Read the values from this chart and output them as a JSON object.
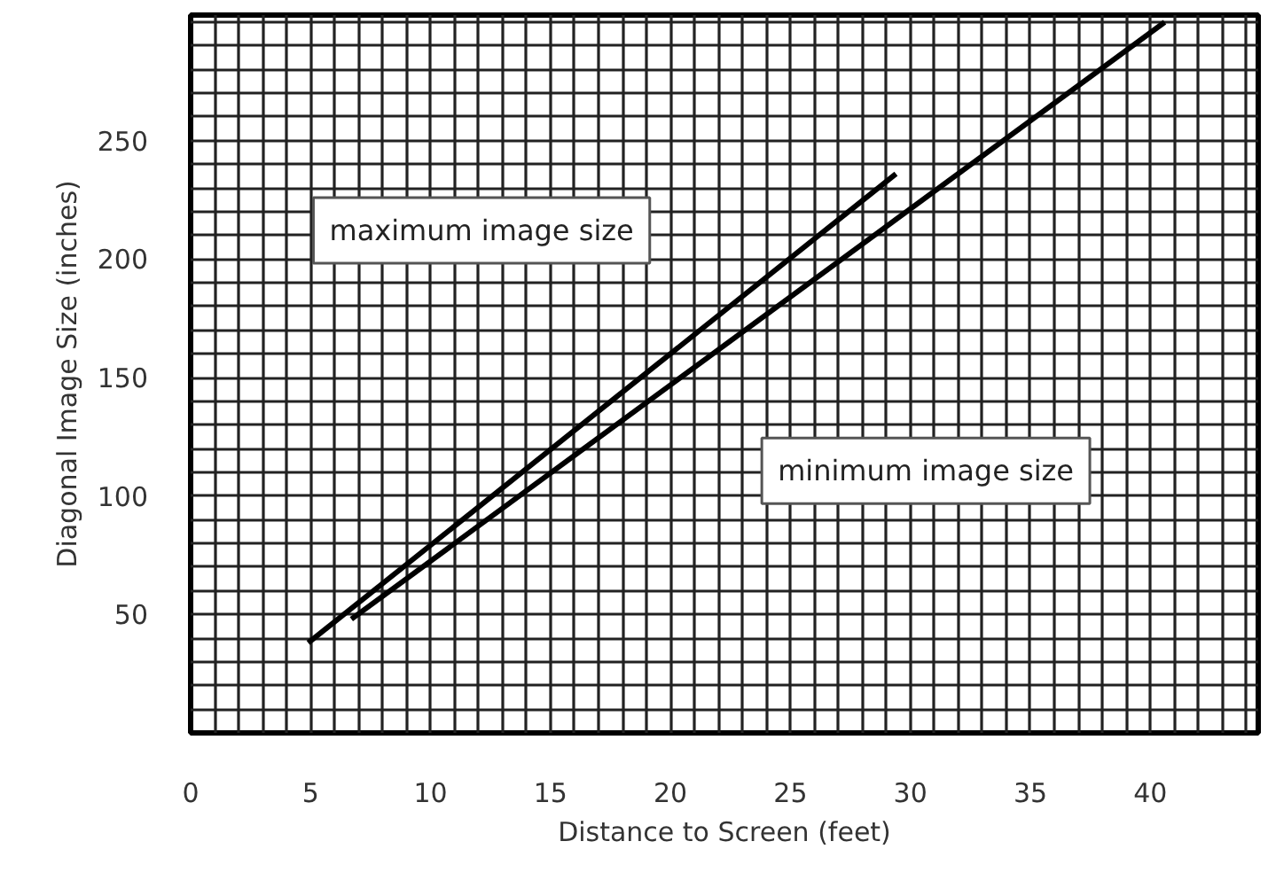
{
  "chart_data": {
    "type": "line",
    "xlabel": "Distance to Screen (feet)",
    "ylabel": "Diagonal Image Size (inches)",
    "xlim": [
      0,
      44.5
    ],
    "ylim": [
      0,
      303
    ],
    "xticks": [
      0,
      5,
      10,
      15,
      20,
      25,
      30,
      35,
      40
    ],
    "yticks": [
      50,
      100,
      150,
      200,
      250
    ],
    "grid": true,
    "marker": "none",
    "line_style": "solid",
    "series": [
      {
        "color": "#000000",
        "x": [
          4.9,
          29.4
        ],
        "values": [
          38,
          236
        ]
      },
      {
        "color": "#000000",
        "x": [
          6.7,
          40.6
        ],
        "values": [
          48,
          300
        ]
      }
    ],
    "annotations": [
      "maximum image size",
      "minimum image size"
    ]
  }
}
